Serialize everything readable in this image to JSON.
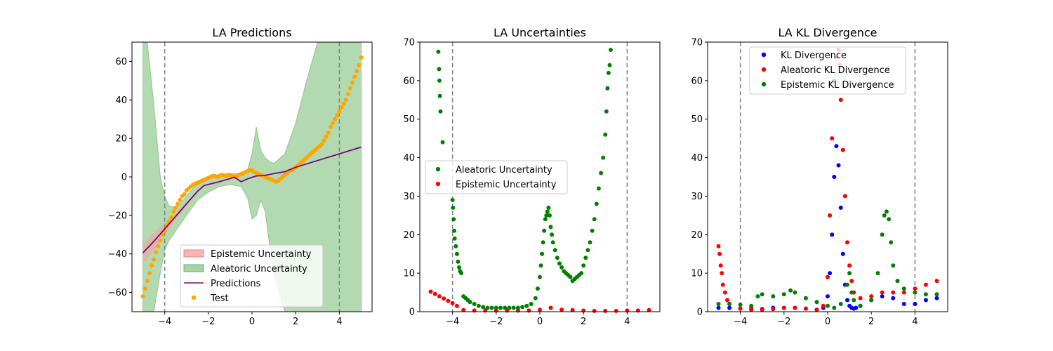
{
  "colors": {
    "epistemic_band": "#f4a3a3",
    "aleatoric_band": "#91c98f",
    "prediction_line": "#800080",
    "test_points": "#ffa500",
    "kl_total": "#0000ff",
    "kl_aleatoric": "#ff0000",
    "kl_epistemic": "#008000",
    "vline": "#808080"
  },
  "chart_data": [
    {
      "type": "line",
      "title": "LA Predictions",
      "xlabel": "",
      "ylabel": "",
      "xlim": [
        -5.5,
        5.5
      ],
      "ylim": [
        -70,
        70
      ],
      "xticks": [
        -4,
        -2,
        0,
        2,
        4
      ],
      "yticks": [
        -60,
        -40,
        -20,
        0,
        20,
        40,
        60
      ],
      "grid": false,
      "vlines": [
        -4,
        4
      ],
      "legend": {
        "placement": "lower-right",
        "entries": [
          "Epistemic Uncertainty",
          "Aleatoric Uncertainty",
          "Predictions",
          "Test"
        ]
      },
      "predictions": {
        "name": "Predictions",
        "x": [
          -5.0,
          -4.5,
          -4.0,
          -3.5,
          -3.0,
          -2.5,
          -2.2,
          -1.5,
          -0.8,
          -0.5,
          -0.2,
          0.2,
          0.6,
          1.0,
          1.5,
          2.0,
          3.0,
          4.0,
          5.0
        ],
        "y": [
          -39.5,
          -33.5,
          -27.0,
          -20.5,
          -14.0,
          -7.5,
          -4.5,
          -2.5,
          -0.2,
          -2.5,
          -1.0,
          0.5,
          0.8,
          1.7,
          2.7,
          5.0,
          8.5,
          12.0,
          15.5
        ]
      },
      "epistemic_band": {
        "name": "Epistemic Uncertainty",
        "x": [
          -5.0,
          -4.5,
          -4.0,
          -3.5,
          -3.0
        ],
        "lower": [
          -45,
          -38,
          -30,
          -22,
          -15
        ],
        "upper": [
          -35,
          -29,
          -24,
          -19,
          -13
        ]
      },
      "aleatoric_band": {
        "name": "Aleatoric Uncertainty",
        "x": [
          -5.0,
          -4.8,
          -4.5,
          -4.2,
          -4.0,
          -3.8,
          -3.5,
          -3.0,
          -2.5,
          -2.0,
          -1.5,
          -1.0,
          -0.5,
          -0.2,
          0.0,
          0.2,
          0.4,
          0.6,
          0.8,
          1.0,
          1.5,
          2.0,
          2.5,
          3.0,
          3.5,
          4.0,
          4.5,
          5.0
        ],
        "lower": [
          -70,
          -70,
          -70,
          -50,
          -38,
          -33,
          -28,
          -20,
          -12,
          -8,
          -5,
          -4,
          -5,
          -11,
          -22,
          -20,
          -12,
          -18,
          -35,
          -50,
          -70,
          -70,
          -70,
          -70,
          -70,
          -70,
          -70,
          -70
        ],
        "upper": [
          70,
          70,
          38,
          0,
          -10,
          -15,
          -16,
          -10,
          -3,
          0,
          1,
          1.5,
          2,
          4,
          12,
          26,
          14,
          10,
          8,
          7,
          12,
          28,
          50,
          70,
          70,
          70,
          70,
          70
        ]
      },
      "test": {
        "name": "Test",
        "x": [
          -5.0,
          -4.9,
          -4.8,
          -4.7,
          -4.6,
          -4.5,
          -4.4,
          -4.3,
          -4.2,
          -4.1,
          -4.0,
          -3.9,
          -3.8,
          -3.7,
          -3.6,
          -3.5,
          -3.4,
          -3.3,
          -3.2,
          -3.1,
          -3.0,
          -2.9,
          -2.8,
          -2.7,
          -2.6,
          -2.5,
          -2.4,
          -2.3,
          -2.2,
          -2.1,
          -2.0,
          -1.9,
          -1.8,
          -1.7,
          -1.6,
          -1.5,
          -1.4,
          -1.3,
          -1.2,
          -1.1,
          -1.0,
          -0.9,
          -0.8,
          -0.7,
          -0.6,
          -0.5,
          -0.4,
          -0.3,
          -0.2,
          -0.1,
          0.0,
          0.1,
          0.2,
          0.3,
          0.4,
          0.5,
          0.6,
          0.7,
          0.8,
          0.9,
          1.0,
          1.1,
          1.2,
          1.3,
          1.4,
          1.5,
          1.6,
          1.7,
          1.8,
          1.9,
          2.0,
          2.1,
          2.2,
          2.3,
          2.4,
          2.5,
          2.6,
          2.7,
          2.8,
          2.9,
          3.0,
          3.1,
          3.2,
          3.3,
          3.4,
          3.5,
          3.6,
          3.7,
          3.8,
          3.9,
          4.0,
          4.1,
          4.2,
          4.3,
          4.4,
          4.5,
          4.6,
          4.7,
          4.8,
          4.9,
          5.0
        ],
        "y": [
          -62,
          -58,
          -54,
          -50,
          -46,
          -43,
          -39,
          -36,
          -33,
          -30,
          -28,
          -25,
          -23,
          -21,
          -18,
          -16,
          -14,
          -12,
          -10,
          -9,
          -7,
          -6,
          -5,
          -4,
          -3.5,
          -3,
          -2.5,
          -2,
          -1.5,
          -1,
          -0.5,
          0,
          0.5,
          0.5,
          0,
          0.5,
          1,
          1,
          0.5,
          1,
          1,
          0.5,
          0,
          0.5,
          1,
          1.5,
          2,
          2.5,
          3,
          3.5,
          3.5,
          2.5,
          2,
          1.5,
          1,
          0.5,
          0,
          -0.5,
          -1,
          -1.5,
          -2,
          -2.5,
          -2,
          -1,
          0,
          1,
          2,
          3,
          3.5,
          4,
          5,
          6,
          7,
          8,
          9,
          10,
          11,
          12,
          13,
          14,
          15,
          16,
          17,
          19,
          21,
          23,
          26,
          28,
          30,
          32,
          34,
          36,
          38,
          40,
          43,
          46,
          49,
          52,
          55,
          58,
          62
        ]
      }
    },
    {
      "type": "scatter",
      "title": "LA Uncertainties",
      "xlabel": "",
      "ylabel": "",
      "xlim": [
        -5.5,
        5.5
      ],
      "ylim": [
        0,
        70
      ],
      "xticks": [
        -4,
        -2,
        0,
        2,
        4
      ],
      "yticks": [
        0,
        10,
        20,
        30,
        40,
        50,
        60,
        70
      ],
      "grid": false,
      "vlines": [
        -4,
        4
      ],
      "legend": {
        "placement": "center-left",
        "entries": [
          "Aleatoric Uncertainty",
          "Epistemic Uncertainty"
        ]
      },
      "series": [
        {
          "name": "Aleatoric Uncertainty",
          "x": [
            -4.65,
            -4.62,
            -4.6,
            -4.58,
            -4.55,
            -4.45,
            -4.0,
            -3.98,
            -3.95,
            -3.92,
            -3.9,
            -3.85,
            -3.8,
            -3.75,
            -3.7,
            -3.65,
            -3.6,
            -3.5,
            -3.4,
            -3.3,
            -3.2,
            -3.0,
            -2.8,
            -2.6,
            -2.4,
            -2.2,
            -2.0,
            -1.8,
            -1.6,
            -1.4,
            -1.2,
            -1.0,
            -0.8,
            -0.6,
            -0.4,
            -0.2,
            -0.1,
            0.0,
            0.05,
            0.1,
            0.15,
            0.2,
            0.25,
            0.3,
            0.35,
            0.4,
            0.45,
            0.5,
            0.55,
            0.6,
            0.7,
            0.8,
            0.9,
            1.0,
            1.1,
            1.2,
            1.3,
            1.4,
            1.5,
            1.6,
            1.7,
            1.8,
            1.9,
            2.0,
            2.1,
            2.2,
            2.3,
            2.4,
            2.5,
            2.6,
            2.7,
            2.8,
            2.9,
            3.0,
            3.05,
            3.1,
            3.15,
            3.2,
            3.25
          ],
          "y": [
            67.5,
            63,
            60,
            56,
            52,
            44,
            29,
            27,
            24,
            21,
            19,
            17,
            15,
            13,
            11.5,
            10.5,
            10,
            4,
            3.5,
            3,
            2.5,
            2,
            1.5,
            1.2,
            1,
            1,
            1,
            1,
            1,
            1,
            1,
            1,
            1.2,
            1.5,
            2,
            3.5,
            6,
            9,
            12,
            15,
            18,
            21,
            24,
            25,
            26,
            27,
            25,
            22,
            20,
            18,
            16,
            14,
            12.5,
            11.5,
            10.5,
            10,
            9.5,
            9,
            8,
            8.5,
            9,
            9.5,
            10,
            12,
            14,
            16,
            18,
            21,
            24,
            28,
            32,
            36,
            40,
            46,
            52,
            58,
            62,
            64,
            68
          ]
        },
        {
          "name": "Epistemic Uncertainty",
          "x": [
            -5.0,
            -4.8,
            -4.6,
            -4.4,
            -4.2,
            -4.0,
            -3.8,
            -3.5,
            -3.0,
            -2.5,
            -2.0,
            -1.5,
            -1.0,
            -0.5,
            0.0,
            0.5,
            1.0,
            1.5,
            2.0,
            2.5,
            3.0,
            3.5,
            4.0,
            4.5,
            5.0
          ],
          "y": [
            5.2,
            4.6,
            4.0,
            3.4,
            2.8,
            2.2,
            1.5,
            0.4,
            0.3,
            0.3,
            0.3,
            0.3,
            0.3,
            0.3,
            0.5,
            1.0,
            0.5,
            0.4,
            0.3,
            0.2,
            0.2,
            0.2,
            0.3,
            0.3,
            0.4
          ]
        }
      ]
    },
    {
      "type": "scatter",
      "title": "LA KL Divergence",
      "xlabel": "",
      "ylabel": "",
      "xlim": [
        -5.5,
        5.5
      ],
      "ylim": [
        0,
        70
      ],
      "xticks": [
        -4,
        -2,
        0,
        2,
        4
      ],
      "yticks": [
        0,
        10,
        20,
        30,
        40,
        50,
        60,
        70
      ],
      "grid": false,
      "vlines": [
        -4,
        4
      ],
      "legend": {
        "placement": "upper-center",
        "entries": [
          "KL Divergence",
          "Aleatoric KL Divergence",
          "Epistemic KL Divergence"
        ]
      },
      "series": [
        {
          "name": "KL Divergence",
          "x": [
            -5.0,
            -4.5,
            -4.0,
            -3.5,
            -3.0,
            -2.5,
            -2.0,
            -1.5,
            -1.0,
            -0.5,
            -0.2,
            0.0,
            0.1,
            0.2,
            0.3,
            0.4,
            0.5,
            0.6,
            0.7,
            0.8,
            0.9,
            1.0,
            1.1,
            1.2,
            1.3,
            1.5,
            2.0,
            2.5,
            3.0,
            3.5,
            4.0,
            4.5,
            5.0
          ],
          "y": [
            1.0,
            1.0,
            0.8,
            0.8,
            0.7,
            1.0,
            1.0,
            1.0,
            0.8,
            0.5,
            1.0,
            4.0,
            10.0,
            20.0,
            35.0,
            43.0,
            38.0,
            27.0,
            15.0,
            7.0,
            3.0,
            1.5,
            1.0,
            0.8,
            1.0,
            1.5,
            3.0,
            4.0,
            3.5,
            2.0,
            2.0,
            3.0,
            3.5
          ]
        },
        {
          "name": "Aleatoric KL Divergence",
          "x": [
            -5.0,
            -4.95,
            -4.9,
            -4.85,
            -4.8,
            -4.7,
            -4.6,
            -4.5,
            -4.0,
            -3.5,
            -3.0,
            -2.5,
            -2.0,
            -1.5,
            -1.0,
            -0.5,
            -0.2,
            0.0,
            0.1,
            0.2,
            0.3,
            0.4,
            0.5,
            0.55,
            0.6,
            0.7,
            0.8,
            0.9,
            1.0,
            1.1,
            1.2,
            1.5,
            2.0,
            2.5,
            3.0,
            3.5,
            4.0,
            4.5,
            5.0
          ],
          "y": [
            17.0,
            15.0,
            12.0,
            10.0,
            7.0,
            5.0,
            3.0,
            2.0,
            0.8,
            0.5,
            0.5,
            0.7,
            1.0,
            1.0,
            0.8,
            0.5,
            1.5,
            9.0,
            25.0,
            45.0,
            60.0,
            66.0,
            68.0,
            64.0,
            55.0,
            42.0,
            30.0,
            18.0,
            12.0,
            8.0,
            5.0,
            3.5,
            4.0,
            5.0,
            5.0,
            5.0,
            6.0,
            7.0,
            8.0
          ]
        },
        {
          "name": "Epistemic KL Divergence",
          "x": [
            -5.0,
            -4.5,
            -4.0,
            -3.5,
            -3.2,
            -3.0,
            -2.5,
            -2.0,
            -1.7,
            -1.5,
            -1.0,
            -0.5,
            0.0,
            0.3,
            0.6,
            0.9,
            1.0,
            1.1,
            1.2,
            1.5,
            2.0,
            2.3,
            2.5,
            2.6,
            2.7,
            2.8,
            2.9,
            3.0,
            3.2,
            3.5,
            4.0,
            4.5,
            5.0
          ],
          "y": [
            2.0,
            2.0,
            1.8,
            1.5,
            4.0,
            4.5,
            4.0,
            4.5,
            5.5,
            5.0,
            3.5,
            2.5,
            1.5,
            1.0,
            2.0,
            7.0,
            10.0,
            5.0,
            3.0,
            1.5,
            3.0,
            10.0,
            20.0,
            25.0,
            26.0,
            24.0,
            18.0,
            12.0,
            8.0,
            6.0,
            5.0,
            4.5,
            4.5
          ]
        }
      ]
    }
  ]
}
